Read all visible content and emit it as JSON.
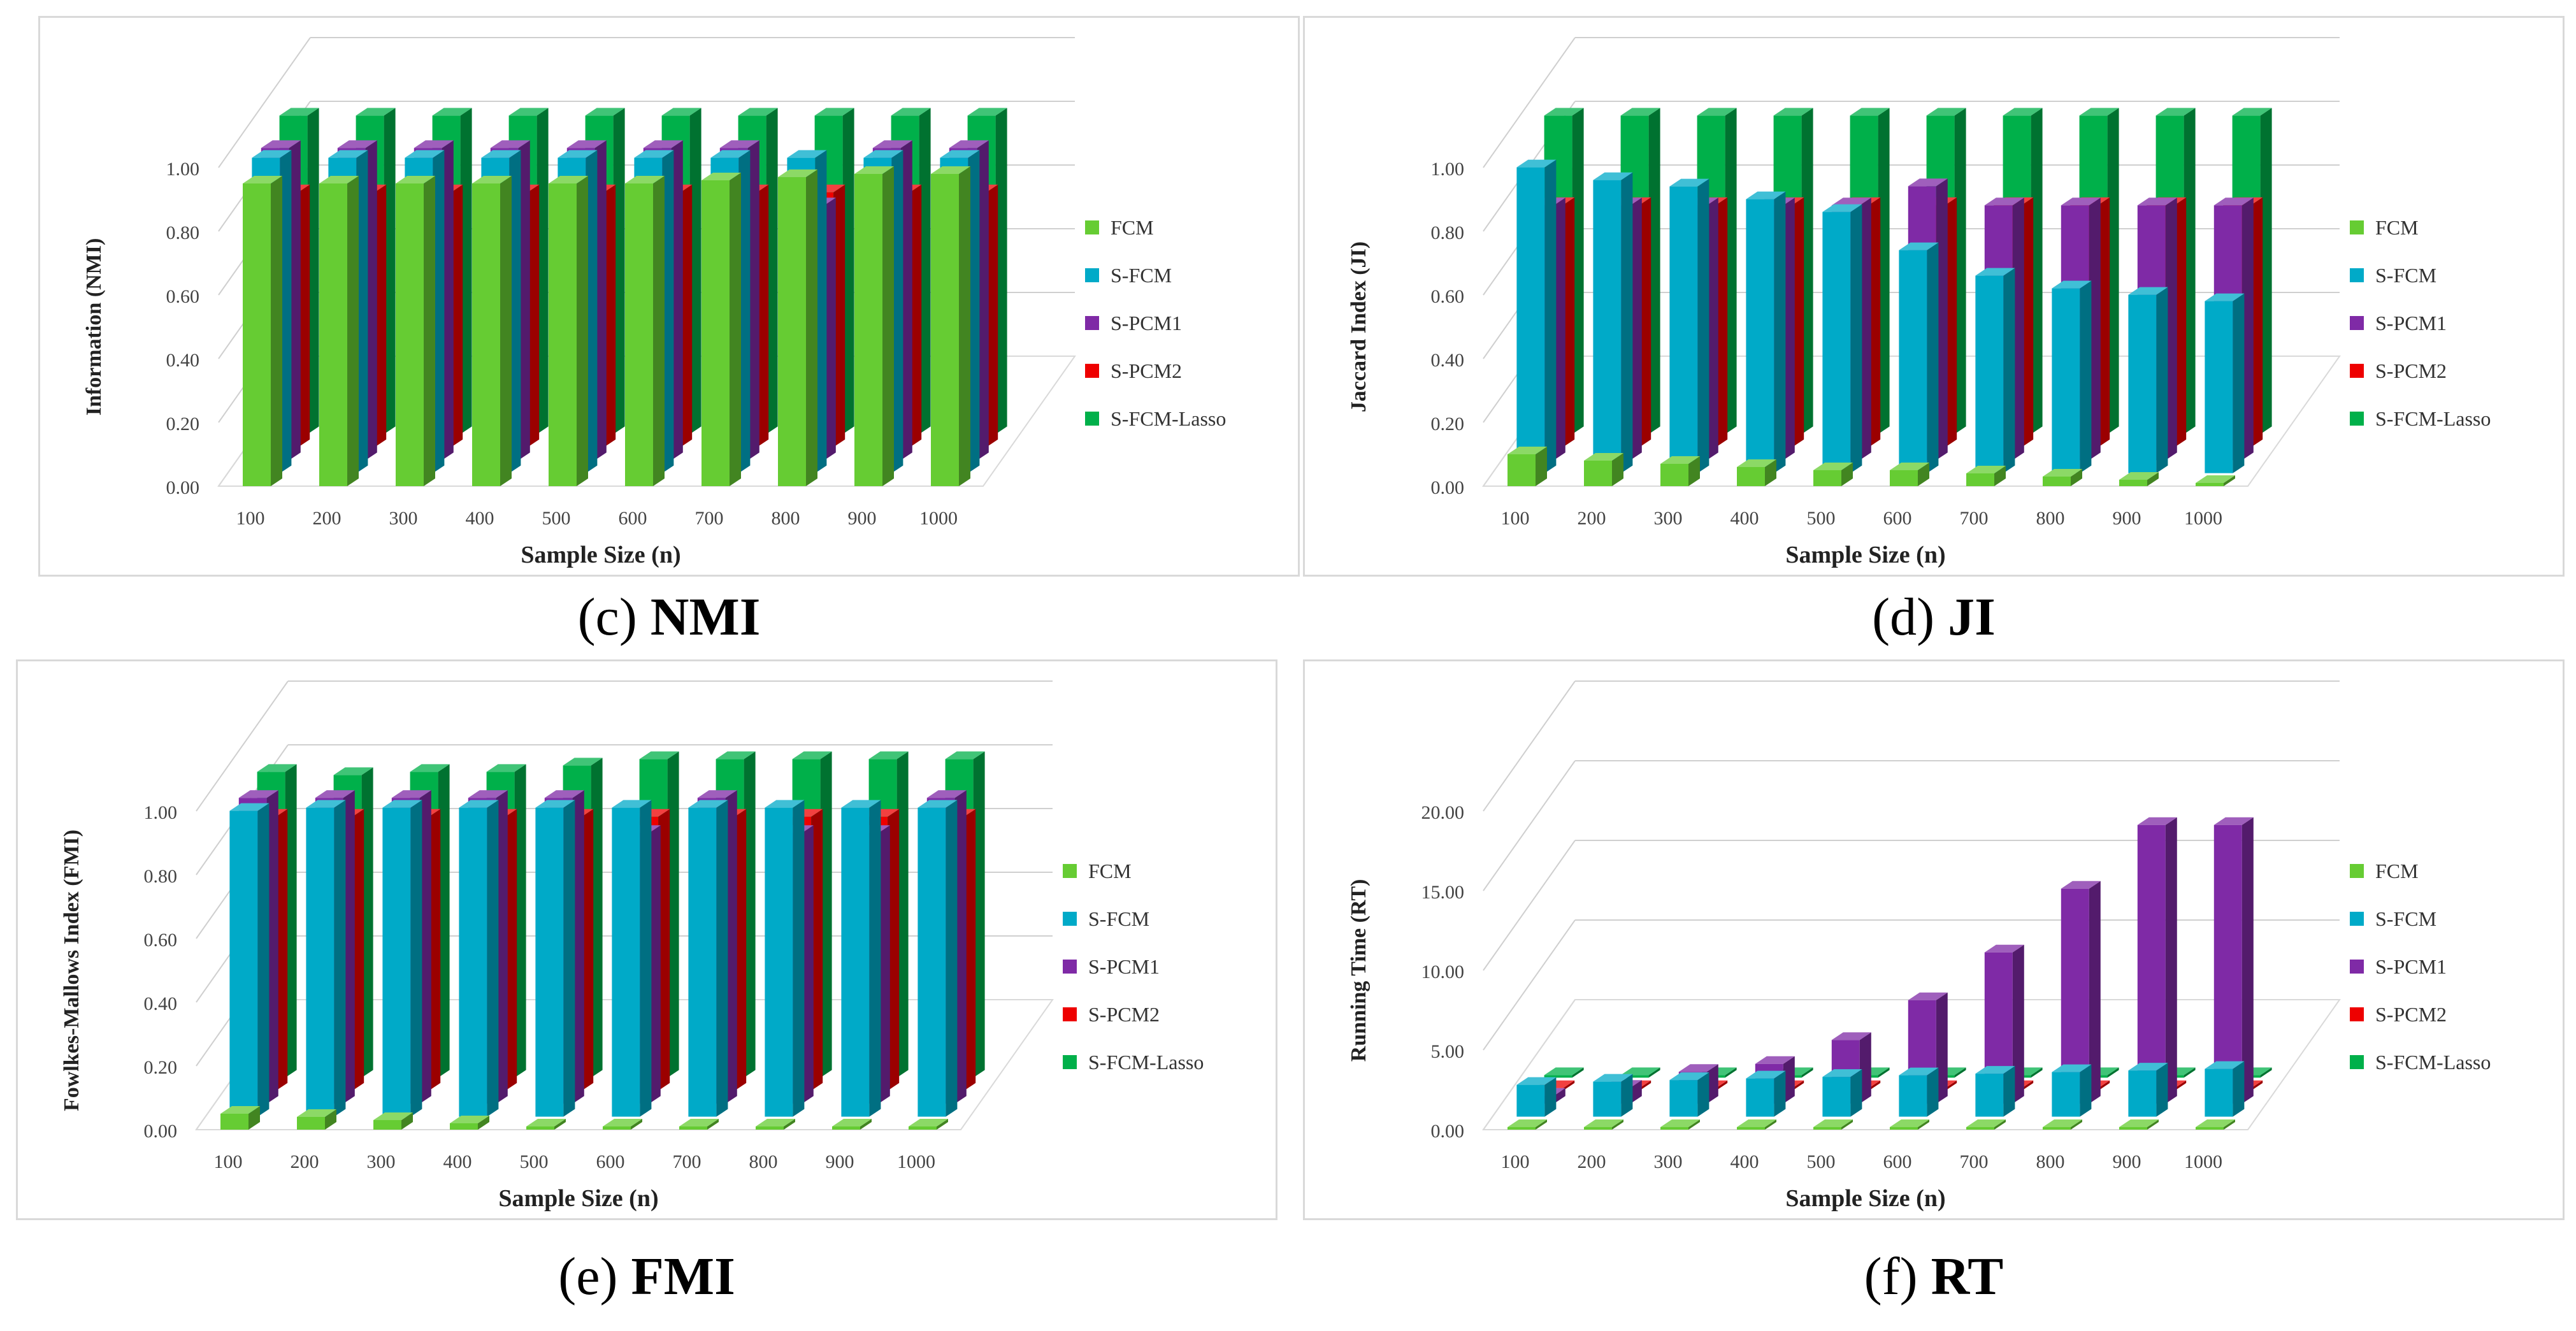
{
  "colors": {
    "FCM": "#66cc33",
    "S-FCM": "#00aac8",
    "S-PCM1": "#7f2aa6",
    "S-PCM2": "#ee0000",
    "S-FCM-Lasso": "#00b04a"
  },
  "chart_data": [
    {
      "id": "c",
      "type": "bar",
      "caption_letter": "(c)",
      "caption_name": "NMI",
      "ylabel": "Information (NMI)",
      "xlabel": "Sample Size (n)",
      "categories": [
        "100",
        "200",
        "300",
        "400",
        "500",
        "600",
        "700",
        "800",
        "900",
        "1000"
      ],
      "yticks": [
        "0.00",
        "0.20",
        "0.40",
        "0.60",
        "0.80",
        "1.00"
      ],
      "ylim": [
        0,
        1
      ],
      "legend": [
        "FCM",
        "S-FCM",
        "S-PCM1",
        "S-PCM2",
        "S-FCM-Lasso"
      ],
      "series": [
        {
          "name": "FCM",
          "values": [
            0.95,
            0.95,
            0.95,
            0.95,
            0.95,
            0.95,
            0.96,
            0.97,
            0.98,
            0.98
          ]
        },
        {
          "name": "S-FCM",
          "values": [
            0.99,
            0.99,
            0.99,
            0.99,
            0.99,
            0.99,
            0.99,
            0.99,
            0.99,
            0.99
          ]
        },
        {
          "name": "S-PCM1",
          "values": [
            0.98,
            0.98,
            0.98,
            0.98,
            0.98,
            0.98,
            0.98,
            0.8,
            0.98,
            0.98
          ]
        },
        {
          "name": "S-PCM2",
          "values": [
            0.8,
            0.8,
            0.8,
            0.8,
            0.8,
            0.8,
            0.8,
            0.8,
            0.8,
            0.8
          ]
        },
        {
          "name": "S-FCM-Lasso",
          "values": [
            1.0,
            1.0,
            1.0,
            1.0,
            1.0,
            1.0,
            1.0,
            1.0,
            1.0,
            1.0
          ]
        }
      ]
    },
    {
      "id": "d",
      "type": "bar",
      "caption_letter": "(d)",
      "caption_name": "JI",
      "ylabel": "Jaccard Index (JI)",
      "xlabel": "Sample Size (n)",
      "categories": [
        "100",
        "200",
        "300",
        "400",
        "500",
        "600",
        "700",
        "800",
        "900",
        "1000"
      ],
      "yticks": [
        "0.00",
        "0.20",
        "0.40",
        "0.60",
        "0.80",
        "1.00"
      ],
      "ylim": [
        0,
        1
      ],
      "legend": [
        "FCM",
        "S-FCM",
        "S-PCM1",
        "S-PCM2",
        "S-FCM-Lasso"
      ],
      "series": [
        {
          "name": "FCM",
          "values": [
            0.1,
            0.08,
            0.07,
            0.06,
            0.05,
            0.05,
            0.04,
            0.03,
            0.02,
            0.01
          ]
        },
        {
          "name": "S-FCM",
          "values": [
            0.96,
            0.92,
            0.9,
            0.86,
            0.82,
            0.7,
            0.62,
            0.58,
            0.56,
            0.54
          ]
        },
        {
          "name": "S-PCM1",
          "values": [
            0.8,
            0.8,
            0.8,
            0.8,
            0.8,
            0.86,
            0.8,
            0.8,
            0.8,
            0.8
          ]
        },
        {
          "name": "S-PCM2",
          "values": [
            0.76,
            0.76,
            0.76,
            0.76,
            0.76,
            0.76,
            0.76,
            0.76,
            0.76,
            0.76
          ]
        },
        {
          "name": "S-FCM-Lasso",
          "values": [
            1.0,
            1.0,
            1.0,
            1.0,
            1.0,
            1.0,
            1.0,
            1.0,
            1.0,
            1.0
          ]
        }
      ]
    },
    {
      "id": "e",
      "type": "bar",
      "caption_letter": "(e)",
      "caption_name": "FMI",
      "ylabel": "Fowlkes-Mallows Index (FMI)",
      "xlabel": "Sample Size (n)",
      "categories": [
        "100",
        "200",
        "300",
        "400",
        "500",
        "600",
        "700",
        "800",
        "900",
        "1000"
      ],
      "yticks": [
        "0.00",
        "0.20",
        "0.40",
        "0.60",
        "0.80",
        "1.00"
      ],
      "ylim": [
        0,
        1
      ],
      "legend": [
        "FCM",
        "S-FCM",
        "S-PCM1",
        "S-PCM2",
        "S-FCM-Lasso"
      ],
      "series": [
        {
          "name": "FCM",
          "values": [
            0.05,
            0.04,
            0.03,
            0.02,
            0.01,
            0.01,
            0.01,
            0.01,
            0.01,
            0.01
          ]
        },
        {
          "name": "S-FCM",
          "values": [
            0.96,
            0.97,
            0.97,
            0.97,
            0.97,
            0.97,
            0.97,
            0.97,
            0.97,
            0.97
          ]
        },
        {
          "name": "S-PCM1",
          "values": [
            0.96,
            0.96,
            0.96,
            0.96,
            0.96,
            0.85,
            0.96,
            0.85,
            0.85,
            0.96
          ]
        },
        {
          "name": "S-PCM2",
          "values": [
            0.86,
            0.86,
            0.86,
            0.86,
            0.86,
            0.86,
            0.86,
            0.86,
            0.86,
            0.86
          ]
        },
        {
          "name": "S-FCM-Lasso",
          "values": [
            0.96,
            0.95,
            0.96,
            0.96,
            0.98,
            1.0,
            1.0,
            1.0,
            1.0,
            1.0
          ]
        }
      ]
    },
    {
      "id": "f",
      "type": "bar",
      "caption_letter": "(f)",
      "caption_name": "RT",
      "ylabel": "Running Time (RT)",
      "xlabel": "Sample Size (n)",
      "categories": [
        "100",
        "200",
        "300",
        "400",
        "500",
        "600",
        "700",
        "800",
        "900",
        "1000"
      ],
      "yticks": [
        "0.00",
        "5.00",
        "10.00",
        "15.00",
        "20.00"
      ],
      "ylim": [
        0,
        20
      ],
      "legend": [
        "FCM",
        "S-FCM",
        "S-PCM1",
        "S-PCM2",
        "S-FCM-Lasso"
      ],
      "series": [
        {
          "name": "FCM",
          "values": [
            0.05,
            0.05,
            0.05,
            0.05,
            0.05,
            0.05,
            0.05,
            0.05,
            0.05,
            0.05
          ]
        },
        {
          "name": "S-FCM",
          "values": [
            2.0,
            2.2,
            2.3,
            2.4,
            2.5,
            2.6,
            2.7,
            2.8,
            2.9,
            3.0
          ]
        },
        {
          "name": "S-PCM1",
          "values": [
            0.5,
            1.0,
            2.0,
            2.5,
            4.0,
            6.5,
            9.5,
            13.5,
            17.5,
            17.5
          ]
        },
        {
          "name": "S-PCM2",
          "values": [
            0.1,
            0.1,
            0.1,
            0.1,
            0.1,
            0.1,
            0.1,
            0.1,
            0.1,
            0.1
          ]
        },
        {
          "name": "S-FCM-Lasso",
          "values": [
            0.1,
            0.1,
            0.1,
            0.1,
            0.1,
            0.1,
            0.1,
            0.1,
            0.1,
            0.1
          ]
        }
      ]
    }
  ]
}
